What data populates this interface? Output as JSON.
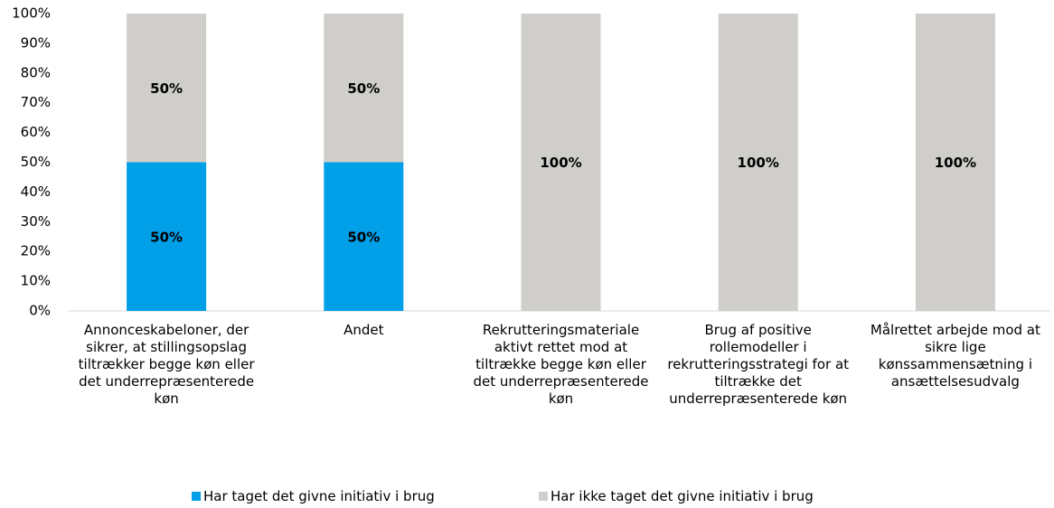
{
  "chart_data": {
    "type": "stacked_bar",
    "categories": [
      "Annonceskabeloner, der sikrer, at stillingsopslag tiltrækker begge køn eller det underrepræsenterede køn",
      "Andet",
      "Rekrutteringsmateriale aktivt rettet mod at tiltrække begge køn eller det underrepræsenterede køn",
      "Brug af positive rollemodeller i rekrutteringsstrategi for at tiltrække det underrepræsenterede køn",
      "Målrettet arbejde mod at sikre lige kønssammensætning i ansættelsesudvalg"
    ],
    "series": [
      {
        "name": "Har taget det givne initiativ i brug",
        "color": "#009fe8",
        "values": [
          50,
          50,
          0,
          0,
          0
        ],
        "value_labels": [
          "50%",
          "50%",
          null,
          null,
          null
        ]
      },
      {
        "name": "Har ikke taget det givne initiativ i brug",
        "color": "#d0cecb",
        "values": [
          50,
          50,
          100,
          100,
          100
        ],
        "value_labels": [
          "50%",
          "50%",
          "100%",
          "100%",
          "100%"
        ]
      }
    ],
    "ylim": [
      0,
      100
    ],
    "yticks": [
      {
        "value": 0,
        "label": "0%"
      },
      {
        "value": 10,
        "label": "10%"
      },
      {
        "value": 20,
        "label": "20%"
      },
      {
        "value": 30,
        "label": "30%"
      },
      {
        "value": 40,
        "label": "40%"
      },
      {
        "value": 50,
        "label": "50%"
      },
      {
        "value": 60,
        "label": "60%"
      },
      {
        "value": 70,
        "label": "70%"
      },
      {
        "value": 80,
        "label": "80%"
      },
      {
        "value": 90,
        "label": "90%"
      },
      {
        "value": 100,
        "label": "100%"
      }
    ],
    "grid": false,
    "legend": "bottom"
  }
}
